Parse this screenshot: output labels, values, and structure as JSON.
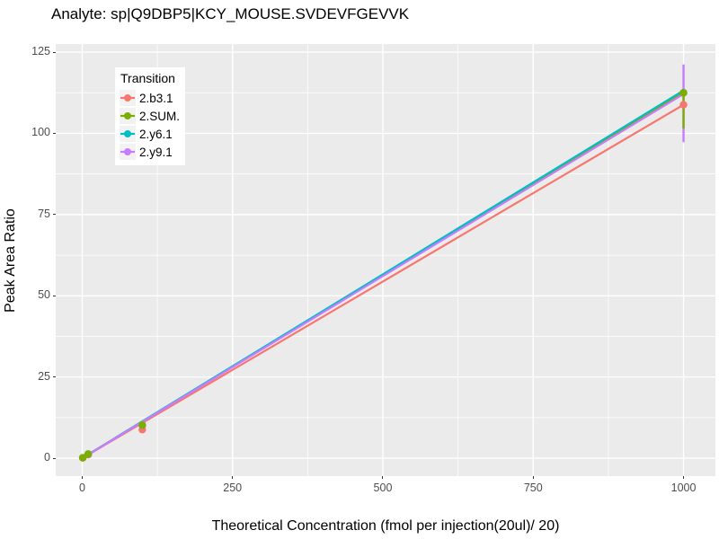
{
  "chart_data": {
    "type": "line",
    "title": "Analyte: sp|Q9DBP5|KCY_MOUSE.SVDEVFGEVVK",
    "xlabel": "Theoretical Concentration (fmol per injection(20ul)/ 20)",
    "ylabel": "Peak Area Ratio",
    "legend_title": "Transition",
    "legend_position": "top-left-inside",
    "grid": "on",
    "panel_bg": "#EBEBEB",
    "grid_major_color": "#FFFFFF",
    "grid_minor_color": "#FFFFFF",
    "tick_label_color": "#4D4D4D",
    "xlim": [
      -44,
      1053
    ],
    "ylim": [
      -5.5,
      127.5
    ],
    "x_ticks": [
      0,
      250,
      500,
      750,
      1000
    ],
    "y_ticks": [
      0,
      25,
      50,
      75,
      100,
      125
    ],
    "x_minor_ticks": [
      125,
      375,
      625,
      875
    ],
    "y_minor_ticks": [
      12.5,
      37.5,
      62.5,
      87.5,
      112.5
    ],
    "series": [
      {
        "name": "2.b3.1",
        "color": "#F8766D",
        "line_x": [
          1,
          1000
        ],
        "line_y": [
          0.1,
          108.8
        ],
        "points_x": [
          1,
          10,
          100,
          1000
        ],
        "points_y": [
          0.11,
          1.09,
          8.8,
          108.8
        ]
      },
      {
        "name": "2.SUM.",
        "color": "#7CAE00",
        "line_x": [
          1,
          1000
        ],
        "line_y": [
          0.15,
          112.6
        ],
        "points_x": [
          1,
          10,
          100,
          1000
        ],
        "points_y": [
          0.15,
          1.3,
          10.2,
          112.5
        ],
        "errorbar": {
          "x": 1000,
          "low": 101.5,
          "high": 112.5
        }
      },
      {
        "name": "2.y6.1",
        "color": "#00BFC4",
        "line_x": [
          1,
          1000
        ],
        "line_y": [
          0.15,
          113.2
        ],
        "points_x": [
          1,
          10,
          100,
          1000
        ],
        "points_y": [
          0.15,
          1.3,
          10.2,
          112.5
        ]
      },
      {
        "name": "2.y9.1",
        "color": "#C77CFF",
        "line_x": [
          1,
          1000
        ],
        "line_y": [
          0.12,
          112.1
        ],
        "points_x": [
          1,
          10,
          100,
          1000
        ],
        "points_y": [
          0.15,
          1.3,
          10.2,
          112.5
        ],
        "errorbar": {
          "x": 1000,
          "low": 97.3,
          "high": 121.2
        }
      }
    ],
    "line_draw_order": [
      "2.SUM.",
      "2.b3.1",
      "2.y6.1",
      "2.y9.1"
    ],
    "errorbar_draw_order": [
      "2.y9.1",
      "2.SUM."
    ],
    "point_draw_order": [
      "2.b3.1",
      "2.y6.1",
      "2.y9.1",
      "2.SUM."
    ]
  }
}
